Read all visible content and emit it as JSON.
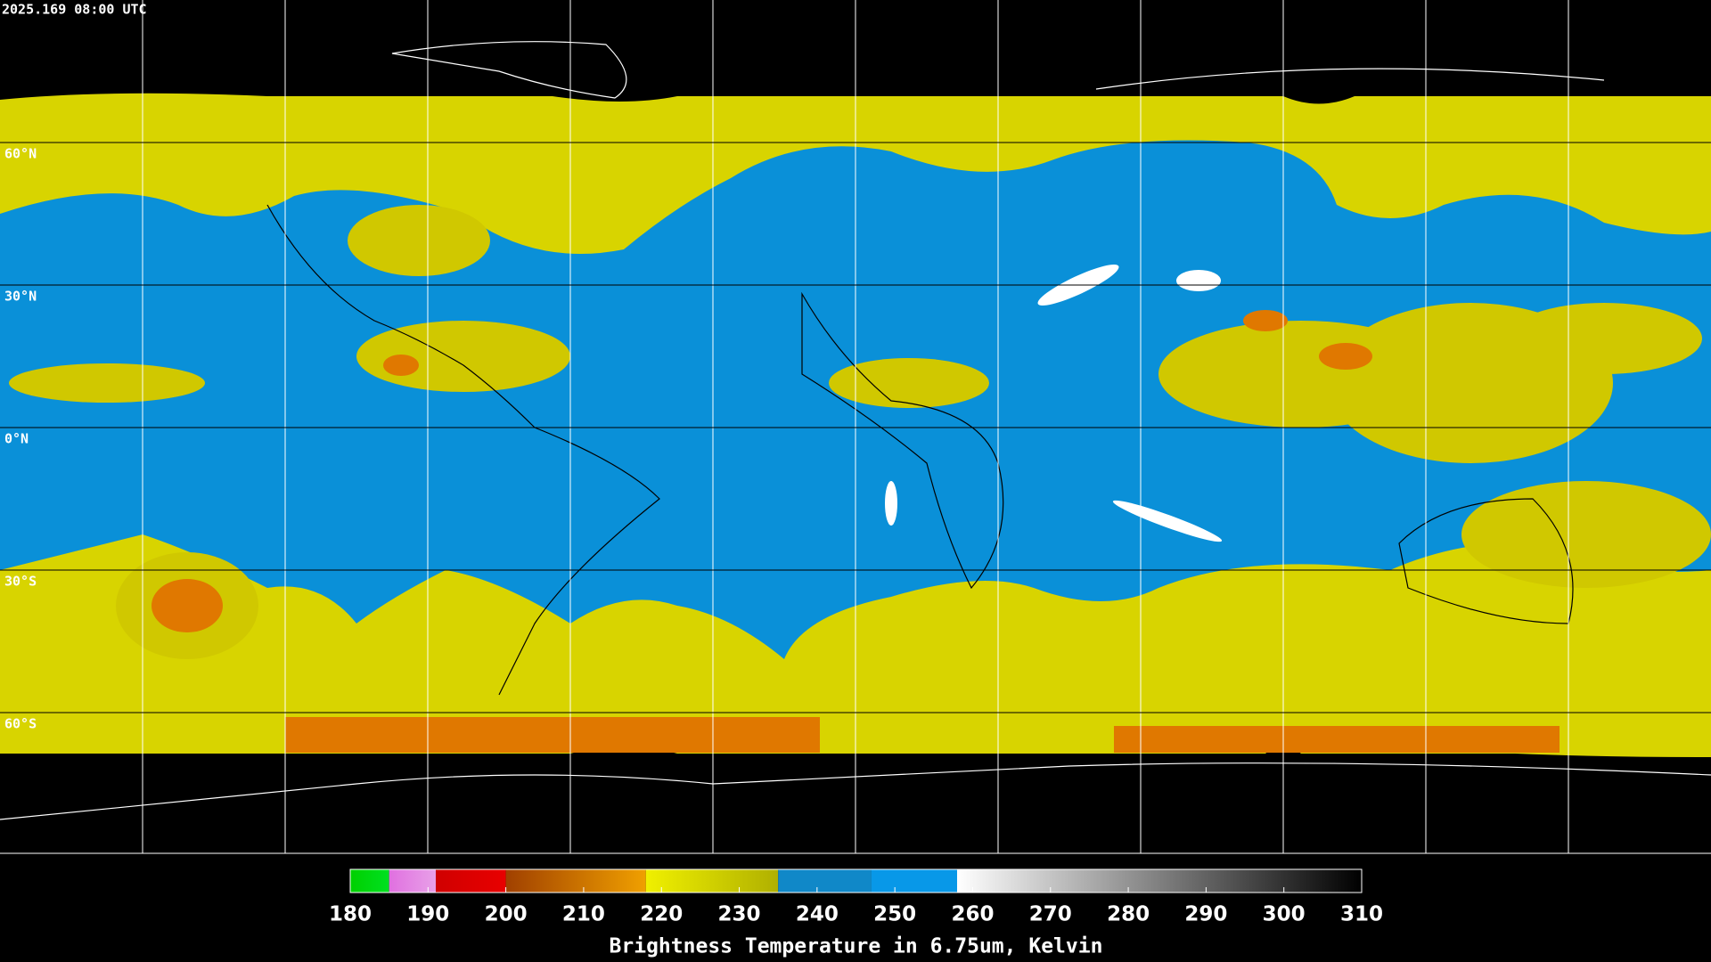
{
  "timestamp": "2025.169 08:00 UTC",
  "lat_lines": [
    {
      "value": 60,
      "label": "60°N"
    },
    {
      "value": 30,
      "label": "30°N"
    },
    {
      "value": 0,
      "label": "0°N"
    },
    {
      "value": -30,
      "label": "30°S"
    },
    {
      "value": -60,
      "label": "60°S"
    }
  ],
  "colorbar": {
    "title": "Brightness Temperature in 6.75um, Kelvin",
    "range": [
      180,
      310
    ],
    "ticks": [
      180,
      190,
      200,
      210,
      220,
      230,
      240,
      250,
      260,
      270,
      280,
      290,
      300,
      310
    ],
    "segments": [
      {
        "from": 180,
        "to": 185,
        "colors": [
          "#00d000",
          "#00e020"
        ]
      },
      {
        "from": 185,
        "to": 191,
        "colors": [
          "#e070e0",
          "#e8a0e8"
        ]
      },
      {
        "from": 191,
        "to": 200,
        "colors": [
          "#d00000",
          "#e80000"
        ]
      },
      {
        "from": 200,
        "to": 218,
        "colors": [
          "#a04000",
          "#f0a000"
        ]
      },
      {
        "from": 218,
        "to": 235,
        "colors": [
          "#f0f000",
          "#b0b000"
        ]
      },
      {
        "from": 235,
        "to": 247,
        "colors": [
          "#1088c8",
          "#1088c8"
        ]
      },
      {
        "from": 247,
        "to": 258,
        "colors": [
          "#0898e8",
          "#0898e8"
        ]
      },
      {
        "from": 258,
        "to": 310,
        "colors": [
          "#ffffff",
          "#000000"
        ]
      }
    ]
  }
}
